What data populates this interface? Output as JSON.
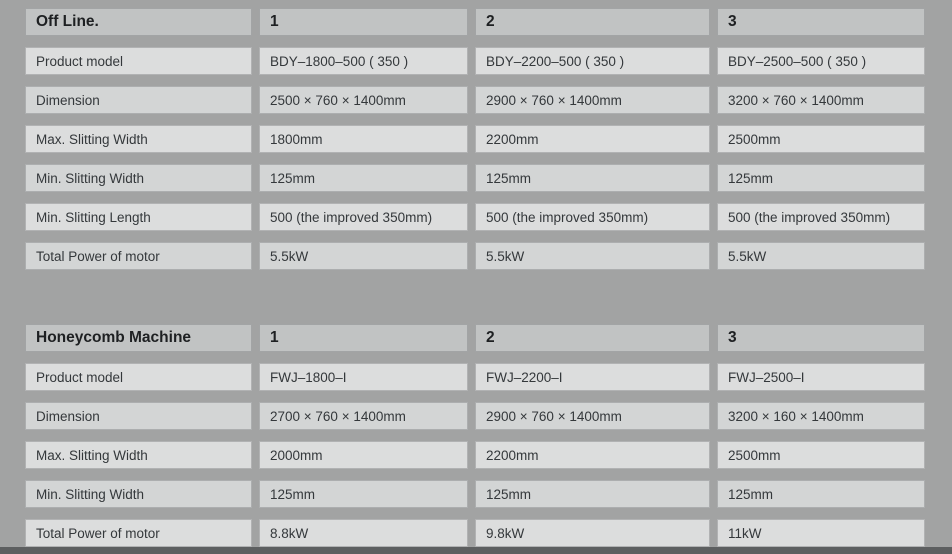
{
  "page": {
    "background_color": "#a2a3a3",
    "bottom_bar_color": "#5d5f60",
    "header_cell_color": "#c1c3c3",
    "row_light_color": "#dcdddd",
    "row_dark_color": "#d3d5d5"
  },
  "tables": [
    {
      "title": "Off Line.",
      "columns": [
        "1",
        "2",
        "3"
      ],
      "rows": [
        {
          "label": "Product model",
          "values": [
            "BDY–1800–500 ( 350 )",
            "BDY–2200–500 ( 350 )",
            "BDY–2500–500 ( 350 )"
          ]
        },
        {
          "label": "Dimension",
          "values": [
            "2500 × 760 × 1400mm",
            "2900 × 760 × 1400mm",
            "3200 × 760 × 1400mm"
          ]
        },
        {
          "label": "Max. Slitting Width",
          "values": [
            "1800mm",
            "2200mm",
            "2500mm"
          ]
        },
        {
          "label": "Min. Slitting Width",
          "values": [
            "125mm",
            "125mm",
            "125mm"
          ]
        },
        {
          "label": "Min. Slitting Length",
          "values": [
            "500 (the improved 350mm)",
            "500 (the improved 350mm)",
            "500 (the improved 350mm)"
          ]
        },
        {
          "label": "Total Power of motor",
          "values": [
            "5.5kW",
            "5.5kW",
            "5.5kW"
          ]
        }
      ]
    },
    {
      "title": "Honeycomb Machine",
      "columns": [
        "1",
        "2",
        "3"
      ],
      "rows": [
        {
          "label": "Product model",
          "values": [
            "FWJ–1800–I",
            "FWJ–2200–I",
            "FWJ–2500–I"
          ]
        },
        {
          "label": "Dimension",
          "values": [
            "2700 × 760 × 1400mm",
            "2900 × 760 × 1400mm",
            "3200 × 160 × 1400mm"
          ]
        },
        {
          "label": "Max. Slitting Width",
          "values": [
            "2000mm",
            "2200mm",
            "2500mm"
          ]
        },
        {
          "label": "Min. Slitting Width",
          "values": [
            "125mm",
            "125mm",
            "125mm"
          ]
        },
        {
          "label": "Total Power of motor",
          "values": [
            "8.8kW",
            "9.8kW",
            "11kW"
          ]
        }
      ]
    }
  ]
}
